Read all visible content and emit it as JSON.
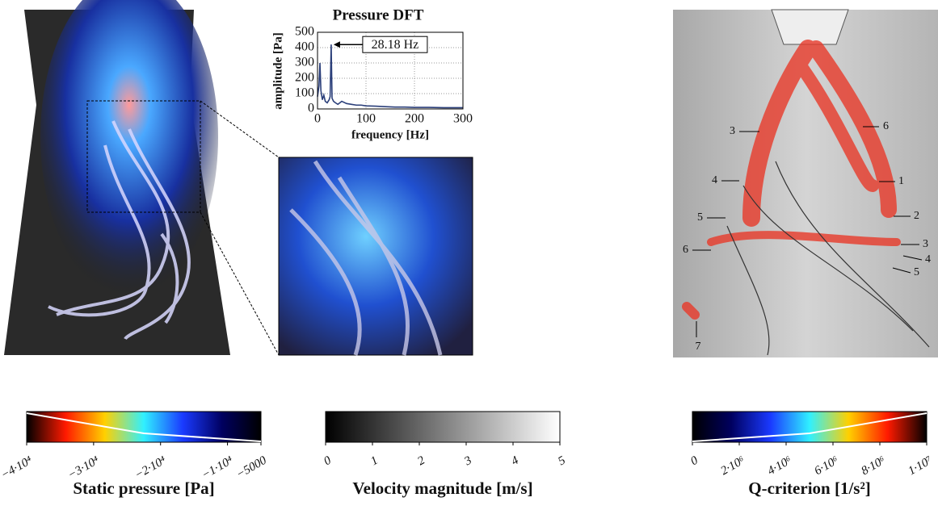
{
  "chart_data": {
    "type": "line",
    "title": "Pressure DFT",
    "x_label": "frequency [Hz]",
    "y_label": "amplitude [Pa]",
    "x": [
      0,
      3,
      5,
      7,
      10,
      13,
      16,
      20,
      24,
      26,
      28.18,
      30,
      33,
      37,
      42,
      50,
      60,
      70,
      80,
      90,
      100,
      120,
      140,
      160,
      180,
      200,
      230,
      260,
      300
    ],
    "values": [
      80,
      150,
      300,
      120,
      60,
      90,
      50,
      40,
      60,
      80,
      420,
      70,
      50,
      40,
      30,
      50,
      35,
      30,
      25,
      25,
      20,
      18,
      15,
      12,
      12,
      10,
      10,
      8,
      8
    ],
    "color": "#2b3f7a",
    "xlim": [
      0,
      300
    ],
    "ylim": [
      0,
      500
    ],
    "xticks": [
      0,
      100,
      200,
      300
    ],
    "yticks": [
      0,
      100,
      200,
      300,
      400,
      500
    ],
    "grid": true,
    "annotation": {
      "text": "28.18 Hz",
      "x": 28.18,
      "y": 420
    }
  },
  "colorbars": [
    {
      "title": "Static pressure [Pa]",
      "colors": [
        "#000000",
        "#ff1a00",
        "#ffd000",
        "#30f0ff",
        "#1a3aff",
        "#000060",
        "#000000"
      ],
      "lim": [
        -40000,
        -5000
      ],
      "ticks": [
        {
          "value": -40000,
          "label": "−4·10⁴"
        },
        {
          "value": -30000,
          "label": "−3·10⁴"
        },
        {
          "value": -20000,
          "label": "−2·10⁴"
        },
        {
          "value": -10000,
          "label": "−1·10⁴"
        },
        {
          "value": -5000,
          "label": "−5000"
        }
      ]
    },
    {
      "title": "Velocity magnitude [m/s]",
      "colors": [
        "#000000",
        "#ffffff"
      ],
      "lim": [
        0,
        5
      ],
      "ticks": [
        0,
        1,
        2,
        3,
        4,
        5
      ]
    },
    {
      "title": "Q-criterion [1/s²]",
      "colors": [
        "#000000",
        "#000060",
        "#1a3aff",
        "#30f0ff",
        "#ffd000",
        "#ff1a00",
        "#000000"
      ],
      "lim": [
        0,
        10000000
      ],
      "ticks": [
        0,
        {
          "value": 2000000,
          "label": "2·10⁶"
        },
        {
          "value": 4000000,
          "label": "4·10⁶"
        },
        {
          "value": 6000000,
          "label": "6·10⁶"
        },
        {
          "value": 8000000,
          "label": "8·10⁶"
        },
        {
          "value": 10000000,
          "label": "1·10⁷"
        }
      ]
    }
  ],
  "labels": [
    3,
    6,
    4,
    1,
    5,
    2,
    6,
    3,
    4,
    5,
    7
  ]
}
